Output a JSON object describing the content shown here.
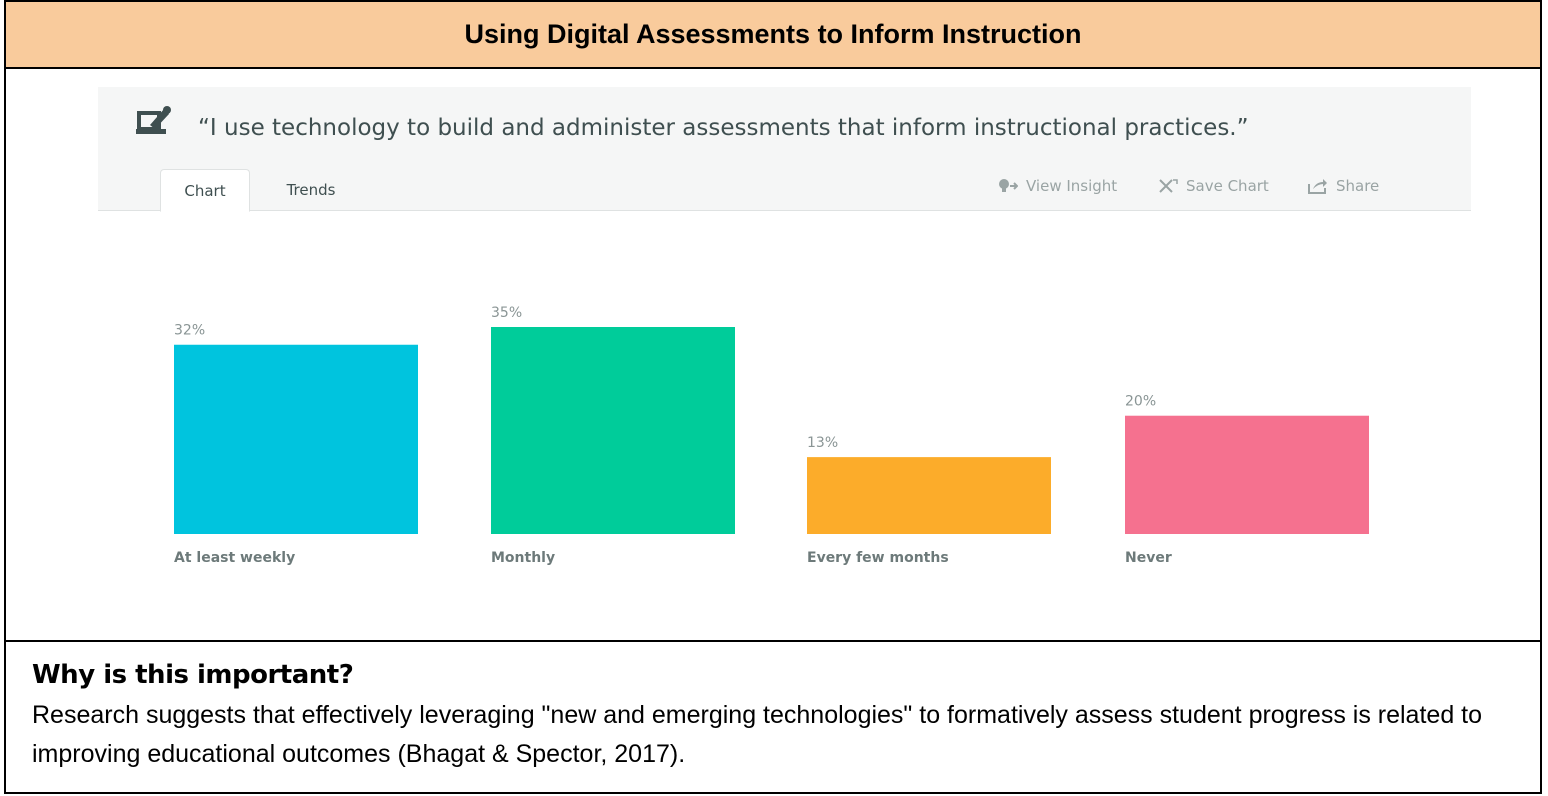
{
  "header": {
    "title": "Using Digital Assessments to Inform Instruction"
  },
  "quote": {
    "text": "“I use technology to build and administer assessments that inform instructional practices.”",
    "icon": "laptop-pen-icon"
  },
  "tabs": [
    {
      "label": "Chart",
      "active": true
    },
    {
      "label": "Trends",
      "active": false
    }
  ],
  "actions": {
    "view_insight": "View Insight",
    "save_chart": "Save Chart",
    "share": "Share"
  },
  "chart_data": {
    "type": "bar",
    "categories": [
      "At least weekly",
      "Monthly",
      "Every few months",
      "Never"
    ],
    "values": [
      32,
      35,
      13,
      20
    ],
    "data_labels": [
      "32%",
      "35%",
      "13%",
      "20%"
    ],
    "colors": [
      "#00c4de",
      "#00cc9a",
      "#fcac2a",
      "#f5718f"
    ],
    "ylim": [
      0,
      35
    ],
    "grid": false
  },
  "explanation": {
    "heading": "Why is this important?",
    "body": "Research suggests that effectively leveraging \"new and emerging technologies\" to formatively assess student progress is related to improving educational outcomes (Bhagat & Spector, 2017)."
  }
}
